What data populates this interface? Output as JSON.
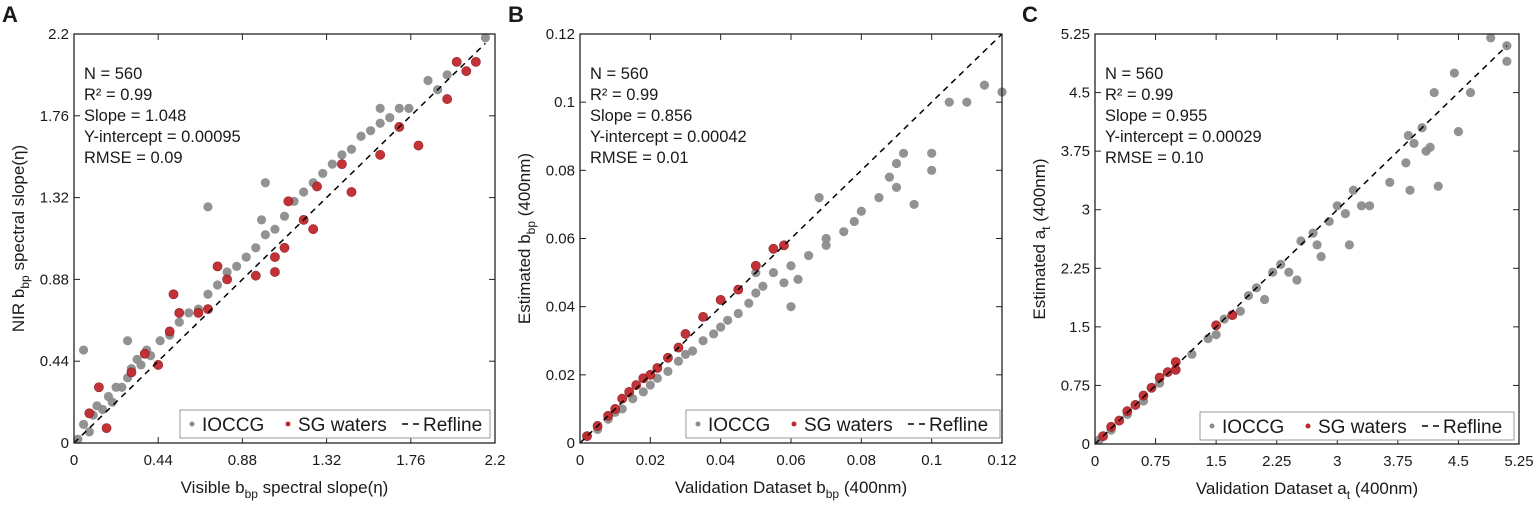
{
  "chart_data": [
    {
      "type": "scatter",
      "panel": "A",
      "xlabel": {
        "pre": "Visible b",
        "sub": "bp",
        "post": " spectral slope(η)"
      },
      "ylabel": {
        "pre": "NIR b",
        "sub": "bp",
        "post": " spectral slope(η)"
      },
      "xlim": [
        0,
        2.2
      ],
      "ylim": [
        0,
        2.2
      ],
      "xticks": [
        "0",
        "0.44",
        "0.88",
        "1.32",
        "1.76",
        "2.2"
      ],
      "yticks": [
        "0",
        "0.44",
        "0.88",
        "1.32",
        "1.76",
        "2.2"
      ],
      "annotations": [
        "N = 560",
        "R² = 0.99",
        "Slope = 1.048",
        "Y-intercept = 0.00095",
        "RMSE = 0.09"
      ],
      "legend": {
        "placement": "bottom-right",
        "entries": [
          "IOCCG",
          "SG waters",
          "Refline"
        ]
      },
      "series": [
        {
          "name": "IOCCG",
          "color": "#8c8c8c",
          "points": [
            [
              0.02,
              0.02
            ],
            [
              0.05,
              0.1
            ],
            [
              0.08,
              0.06
            ],
            [
              0.1,
              0.15
            ],
            [
              0.12,
              0.2
            ],
            [
              0.15,
              0.18
            ],
            [
              0.18,
              0.25
            ],
            [
              0.2,
              0.22
            ],
            [
              0.22,
              0.3
            ],
            [
              0.25,
              0.3
            ],
            [
              0.28,
              0.35
            ],
            [
              0.3,
              0.4
            ],
            [
              0.33,
              0.45
            ],
            [
              0.35,
              0.42
            ],
            [
              0.38,
              0.5
            ],
            [
              0.4,
              0.47
            ],
            [
              0.45,
              0.55
            ],
            [
              0.5,
              0.58
            ],
            [
              0.55,
              0.65
            ],
            [
              0.6,
              0.7
            ],
            [
              0.65,
              0.72
            ],
            [
              0.7,
              0.8
            ],
            [
              0.75,
              0.85
            ],
            [
              0.8,
              0.92
            ],
            [
              0.85,
              0.95
            ],
            [
              0.9,
              1.0
            ],
            [
              0.95,
              1.05
            ],
            [
              1.0,
              1.12
            ],
            [
              1.05,
              1.15
            ],
            [
              1.1,
              1.22
            ],
            [
              1.15,
              1.3
            ],
            [
              1.2,
              1.35
            ],
            [
              1.25,
              1.4
            ],
            [
              1.3,
              1.45
            ],
            [
              1.35,
              1.5
            ],
            [
              1.4,
              1.55
            ],
            [
              1.45,
              1.58
            ],
            [
              1.5,
              1.65
            ],
            [
              1.55,
              1.68
            ],
            [
              1.6,
              1.72
            ],
            [
              1.65,
              1.75
            ],
            [
              1.7,
              1.8
            ],
            [
              1.75,
              1.8
            ],
            [
              1.85,
              1.95
            ],
            [
              1.9,
              1.9
            ],
            [
              1.95,
              1.98
            ],
            [
              2.15,
              2.18
            ],
            [
              0.05,
              0.5
            ],
            [
              0.28,
              0.55
            ],
            [
              0.7,
              1.27
            ],
            [
              1.0,
              1.4
            ],
            [
              0.98,
              1.2
            ],
            [
              1.6,
              1.8
            ]
          ]
        },
        {
          "name": "SG waters",
          "color": "#c0282d",
          "points": [
            [
              0.08,
              0.16
            ],
            [
              0.13,
              0.3
            ],
            [
              0.17,
              0.08
            ],
            [
              0.3,
              0.38
            ],
            [
              0.37,
              0.48
            ],
            [
              0.44,
              0.42
            ],
            [
              0.5,
              0.6
            ],
            [
              0.52,
              0.8
            ],
            [
              0.55,
              0.7
            ],
            [
              0.65,
              0.7
            ],
            [
              0.7,
              0.72
            ],
            [
              0.75,
              0.95
            ],
            [
              0.8,
              0.88
            ],
            [
              0.95,
              0.9
            ],
            [
              1.05,
              1.0
            ],
            [
              1.05,
              0.92
            ],
            [
              1.1,
              1.05
            ],
            [
              1.12,
              1.3
            ],
            [
              1.2,
              1.2
            ],
            [
              1.25,
              1.15
            ],
            [
              1.27,
              1.38
            ],
            [
              1.4,
              1.5
            ],
            [
              1.45,
              1.35
            ],
            [
              1.6,
              1.55
            ],
            [
              1.7,
              1.7
            ],
            [
              1.8,
              1.6
            ],
            [
              1.95,
              1.85
            ],
            [
              2.0,
              2.05
            ],
            [
              2.05,
              2.0
            ],
            [
              2.1,
              2.05
            ]
          ]
        },
        {
          "name": "Refline",
          "color": "#000000",
          "line": [
            [
              0,
              0
            ],
            [
              2.15,
              2.15
            ]
          ]
        }
      ]
    },
    {
      "type": "scatter",
      "panel": "B",
      "xlabel": {
        "pre": "Validation Dataset b",
        "sub": "bp",
        "post": " (400nm)"
      },
      "ylabel": {
        "pre": "Estimated b",
        "sub": "bp",
        "post": " (400nm)"
      },
      "xlim": [
        0,
        0.12
      ],
      "ylim": [
        0,
        0.12
      ],
      "xticks": [
        "0",
        "0.02",
        "0.04",
        "0.06",
        "0.08",
        "0.1",
        "0.12"
      ],
      "yticks": [
        "0",
        "0.02",
        "0.04",
        "0.06",
        "0.08",
        "0.1",
        "0.12"
      ],
      "annotations": [
        "N = 560",
        "R² = 0.99",
        "Slope = 0.856",
        "Y-intercept = 0.00042",
        "RMSE = 0.01"
      ],
      "legend": {
        "placement": "bottom-right",
        "entries": [
          "IOCCG",
          "SG waters",
          "Refline"
        ]
      },
      "series": [
        {
          "name": "IOCCG",
          "color": "#8c8c8c",
          "points": [
            [
              0.002,
              0.002
            ],
            [
              0.005,
              0.004
            ],
            [
              0.008,
              0.007
            ],
            [
              0.01,
              0.009
            ],
            [
              0.012,
              0.01
            ],
            [
              0.015,
              0.013
            ],
            [
              0.018,
              0.015
            ],
            [
              0.02,
              0.017
            ],
            [
              0.022,
              0.019
            ],
            [
              0.025,
              0.021
            ],
            [
              0.028,
              0.024
            ],
            [
              0.03,
              0.026
            ],
            [
              0.032,
              0.027
            ],
            [
              0.035,
              0.03
            ],
            [
              0.038,
              0.032
            ],
            [
              0.04,
              0.034
            ],
            [
              0.042,
              0.036
            ],
            [
              0.045,
              0.038
            ],
            [
              0.048,
              0.041
            ],
            [
              0.05,
              0.044
            ],
            [
              0.052,
              0.046
            ],
            [
              0.055,
              0.05
            ],
            [
              0.058,
              0.047
            ],
            [
              0.06,
              0.052
            ],
            [
              0.062,
              0.048
            ],
            [
              0.065,
              0.055
            ],
            [
              0.07,
              0.06
            ],
            [
              0.07,
              0.058
            ],
            [
              0.075,
              0.062
            ],
            [
              0.078,
              0.065
            ],
            [
              0.08,
              0.068
            ],
            [
              0.085,
              0.072
            ],
            [
              0.088,
              0.078
            ],
            [
              0.09,
              0.082
            ],
            [
              0.092,
              0.085
            ],
            [
              0.095,
              0.07
            ],
            [
              0.1,
              0.085
            ],
            [
              0.105,
              0.1
            ],
            [
              0.11,
              0.1
            ],
            [
              0.115,
              0.105
            ],
            [
              0.12,
              0.103
            ],
            [
              0.06,
              0.04
            ],
            [
              0.05,
              0.05
            ],
            [
              0.068,
              0.072
            ],
            [
              0.09,
              0.075
            ],
            [
              0.1,
              0.08
            ]
          ]
        },
        {
          "name": "SG waters",
          "color": "#c0282d",
          "points": [
            [
              0.002,
              0.002
            ],
            [
              0.005,
              0.005
            ],
            [
              0.008,
              0.008
            ],
            [
              0.01,
              0.01
            ],
            [
              0.012,
              0.013
            ],
            [
              0.014,
              0.015
            ],
            [
              0.016,
              0.017
            ],
            [
              0.018,
              0.019
            ],
            [
              0.02,
              0.02
            ],
            [
              0.022,
              0.022
            ],
            [
              0.025,
              0.025
            ],
            [
              0.028,
              0.028
            ],
            [
              0.03,
              0.032
            ],
            [
              0.035,
              0.037
            ],
            [
              0.04,
              0.042
            ],
            [
              0.045,
              0.045
            ],
            [
              0.05,
              0.052
            ],
            [
              0.055,
              0.057
            ],
            [
              0.058,
              0.058
            ]
          ]
        },
        {
          "name": "Refline",
          "color": "#000000",
          "line": [
            [
              0,
              0
            ],
            [
              0.12,
              0.12
            ]
          ]
        }
      ]
    },
    {
      "type": "scatter",
      "panel": "C",
      "xlabel": {
        "pre": "Validation Dataset a",
        "sub": "t",
        "post": " (400nm)"
      },
      "ylabel": {
        "pre": "Estimated a",
        "sub": "t",
        "post": " (400nm)"
      },
      "xlim": [
        0,
        5.25
      ],
      "ylim": [
        0,
        5.25
      ],
      "xticks": [
        "0",
        "0.75",
        "1.5",
        "2.25",
        "3",
        "3.75",
        "4.5",
        "5.25"
      ],
      "yticks": [
        "0",
        "0.75",
        "1.5",
        "2.25",
        "3",
        "3.75",
        "4.5",
        "5.25"
      ],
      "annotations": [
        "N = 560",
        "R² = 0.99",
        "Slope = 0.955",
        "Y-intercept = 0.00029",
        "RMSE = 0.10"
      ],
      "legend": {
        "placement": "bottom-right",
        "entries": [
          "IOCCG",
          "SG waters",
          "Refline"
        ]
      },
      "series": [
        {
          "name": "IOCCG",
          "color": "#8c8c8c",
          "points": [
            [
              0.05,
              0.05
            ],
            [
              0.2,
              0.18
            ],
            [
              0.4,
              0.38
            ],
            [
              0.6,
              0.55
            ],
            [
              0.8,
              0.78
            ],
            [
              1.0,
              0.95
            ],
            [
              1.2,
              1.15
            ],
            [
              1.4,
              1.35
            ],
            [
              1.5,
              1.4
            ],
            [
              1.6,
              1.6
            ],
            [
              1.8,
              1.7
            ],
            [
              1.9,
              1.9
            ],
            [
              2.0,
              2.0
            ],
            [
              2.1,
              1.85
            ],
            [
              2.2,
              2.2
            ],
            [
              2.3,
              2.3
            ],
            [
              2.4,
              2.2
            ],
            [
              2.5,
              2.1
            ],
            [
              2.55,
              2.6
            ],
            [
              2.7,
              2.7
            ],
            [
              2.75,
              2.55
            ],
            [
              2.8,
              2.4
            ],
            [
              2.9,
              2.85
            ],
            [
              3.0,
              3.05
            ],
            [
              3.1,
              2.95
            ],
            [
              3.15,
              2.55
            ],
            [
              3.2,
              3.25
            ],
            [
              3.3,
              3.05
            ],
            [
              3.4,
              3.05
            ],
            [
              3.65,
              3.35
            ],
            [
              3.85,
              3.6
            ],
            [
              3.88,
              3.95
            ],
            [
              3.9,
              3.25
            ],
            [
              3.95,
              3.85
            ],
            [
              4.05,
              4.05
            ],
            [
              4.1,
              3.75
            ],
            [
              4.15,
              3.8
            ],
            [
              4.2,
              4.5
            ],
            [
              4.25,
              3.3
            ],
            [
              4.45,
              4.75
            ],
            [
              4.5,
              4.0
            ],
            [
              4.65,
              4.5
            ],
            [
              4.9,
              5.2
            ],
            [
              5.1,
              4.9
            ],
            [
              5.1,
              5.1
            ]
          ]
        },
        {
          "name": "SG waters",
          "color": "#c0282d",
          "points": [
            [
              0.1,
              0.1
            ],
            [
              0.2,
              0.22
            ],
            [
              0.3,
              0.3
            ],
            [
              0.4,
              0.42
            ],
            [
              0.5,
              0.5
            ],
            [
              0.6,
              0.62
            ],
            [
              0.7,
              0.72
            ],
            [
              0.8,
              0.85
            ],
            [
              0.9,
              0.92
            ],
            [
              1.0,
              1.05
            ],
            [
              1.0,
              0.95
            ],
            [
              1.5,
              1.52
            ],
            [
              1.7,
              1.65
            ]
          ]
        },
        {
          "name": "Refline",
          "color": "#000000",
          "line": [
            [
              0,
              0
            ],
            [
              5.1,
              5.1
            ]
          ]
        }
      ]
    }
  ]
}
